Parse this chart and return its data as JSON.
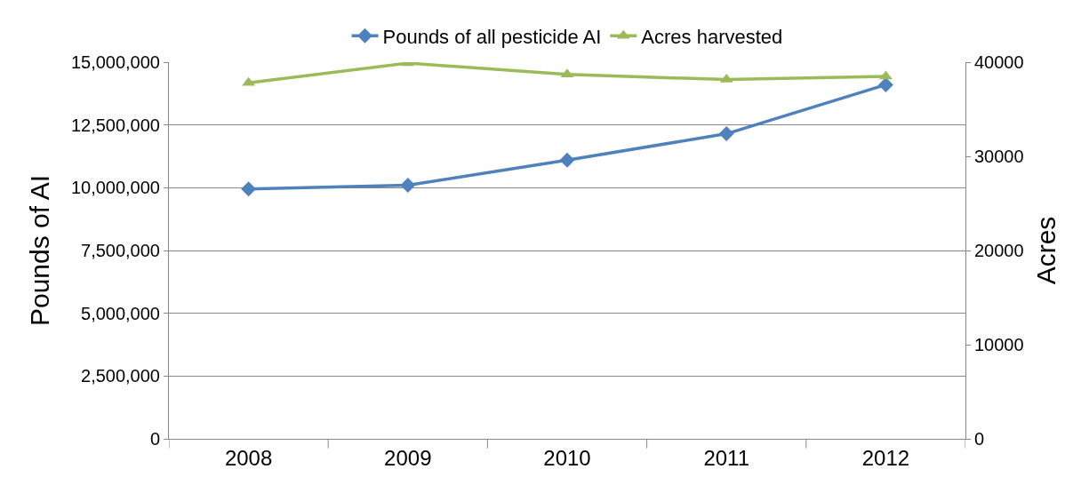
{
  "chart_data": {
    "type": "line",
    "ylabel": "Pounds of AI",
    "y2label": "Acres",
    "categories": [
      "2008",
      "2009",
      "2010",
      "2011",
      "2012"
    ],
    "series": [
      {
        "name": "Pounds of all pesticide AI",
        "color": "#4f81bd",
        "marker": "diamond",
        "values": [
          9950000,
          10100000,
          11100000,
          12150000,
          14100000
        ]
      },
      {
        "name": "Acres harvested",
        "color": "#9bbb59",
        "marker": "triangle",
        "axis": "y2",
        "values": [
          37800,
          39900,
          38700,
          38150,
          38500
        ]
      }
    ],
    "ylim": [
      0,
      15000000
    ],
    "yticks": [
      {
        "value": 0,
        "label": "0"
      },
      {
        "value": 2500000,
        "label": "2,500,000"
      },
      {
        "value": 5000000,
        "label": "5,000,000"
      },
      {
        "value": 7500000,
        "label": "7,500,000"
      },
      {
        "value": 10000000,
        "label": "10,000,000"
      },
      {
        "value": 12500000,
        "label": "12,500,000"
      },
      {
        "value": 15000000,
        "label": "15,000,000"
      }
    ],
    "y2lim": [
      0,
      40000
    ],
    "y2ticks": [
      0,
      10000,
      20000,
      30000,
      40000
    ],
    "grid": "y",
    "legend": "top",
    "line_style": "solid"
  }
}
